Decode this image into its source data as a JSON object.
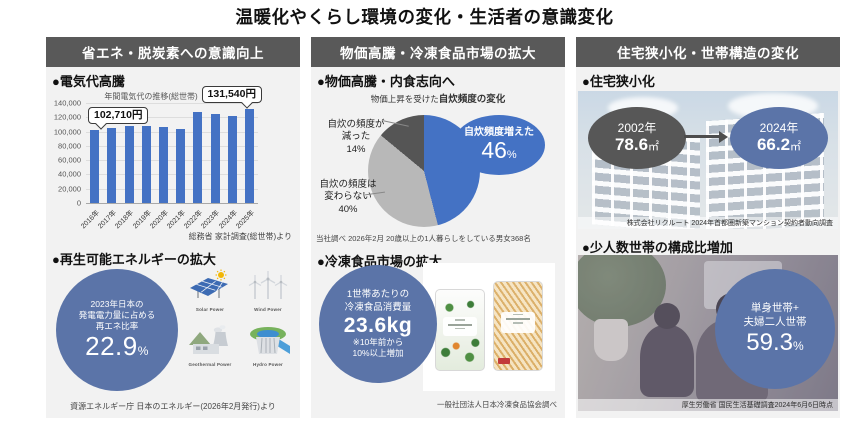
{
  "page_title": "温暖化やくらし環境の変化・生活者の意識変化",
  "colors": {
    "header_gray": "#595959",
    "panel_bg": "#f2f2f2",
    "accent_blue": "#4472c4",
    "slate_blue": "#5b74a8",
    "pie_light_gray": "#b8b8b8",
    "pie_dark_gray": "#555555"
  },
  "left_panel": {
    "header": "省エネ・脱炭素への意識向上",
    "electricity": {
      "heading": "●電気代高騰",
      "chart_title": "年間電気代の推移(総世帯)",
      "callout_first": "102,710円",
      "callout_last": "131,540円",
      "source": "総務省 家計調査(総世帯)より"
    },
    "renewable": {
      "heading": "●再生可能エネルギーの拡大",
      "circle_lines": "2023年日本の\n発電電力量に占める\n再エネ比率",
      "value": "22.9",
      "unit": "%",
      "icons": [
        {
          "name": "solar-power-icon",
          "label": "Solar Power"
        },
        {
          "name": "wind-power-icon",
          "label": "Wind Power"
        },
        {
          "name": "geothermal-power-icon",
          "label": "Geothermal Power"
        },
        {
          "name": "hydro-power-icon",
          "label": "Hydro Power"
        }
      ],
      "source": "資源エネルギー庁 日本のエネルギー(2026年2月発行)より"
    }
  },
  "middle_panel": {
    "header": "物価高騰・冷凍食品市場の拡大",
    "cooking": {
      "heading": "●物価高騰・内食志向へ",
      "chart_title_prefix": "物価上昇を受けた",
      "chart_title_bold": "自炊頻度の変化",
      "label_decreased": "自炊の頻度が\n減った\n14%",
      "label_unchanged": "自炊の頻度は\n変わらない\n40%",
      "ellipse_label": "自炊頻度増えた",
      "ellipse_value": "46",
      "ellipse_unit": "%",
      "source": "当社調べ 2026年2月 20歳以上の1人暮らしをしている男女368名"
    },
    "frozen": {
      "heading": "●冷凍食品市場の拡大",
      "circle_lines": "1世帯あたりの\n冷凍食品消費量",
      "value": "23.6kg",
      "note": "※10年前から\n10%以上増加",
      "source": "一般社団法人日本冷凍食品協会調べ"
    }
  },
  "right_panel": {
    "header": "住宅狭小化・世帯構造の変化",
    "housing": {
      "heading": "●住宅狭小化",
      "year_before": "2002年",
      "area_before": "78.6",
      "year_after": "2024年",
      "area_after": "66.2",
      "area_unit": "㎡",
      "source": "株式会社リクルート 2024年首都圏新築マンション契約者動向調査"
    },
    "household": {
      "heading": "●少人数世帯の構成比増加",
      "circle_lines": "単身世帯+\n夫婦二人世帯",
      "value": "59.3",
      "unit": "%",
      "source": "厚生労働省 国民生活基礎調査2024年6月6日時点"
    }
  },
  "chart_data": [
    {
      "type": "bar",
      "title": "年間電気代の推移(総世帯)",
      "categories": [
        "2016年",
        "2017年",
        "2018年",
        "2019年",
        "2020年",
        "2021年",
        "2022年",
        "2023年",
        "2024年",
        "2025年"
      ],
      "values": [
        102710,
        104500,
        108000,
        108000,
        107000,
        103500,
        127500,
        124000,
        122500,
        131540
      ],
      "ylim": [
        0,
        140000
      ],
      "yticks": [
        "140,000",
        "120,000",
        "100,000",
        "80,000",
        "60,000",
        "40,000",
        "20,000",
        "0"
      ],
      "bar_color": "#4472c4",
      "annotations": [
        {
          "category": "2016年",
          "text": "102,710円"
        },
        {
          "category": "2025年",
          "text": "131,540円"
        }
      ],
      "ylabel": "",
      "xlabel": "",
      "grid": true,
      "source": "総務省 家計調査(総世帯)より"
    },
    {
      "type": "pie",
      "title": "物価上昇を受けた自炊頻度の変化",
      "slices": [
        {
          "label": "自炊頻度増えた",
          "value": 46,
          "color": "#4472c4"
        },
        {
          "label": "自炊の頻度は変わらない",
          "value": 40,
          "color": "#b8b8b8"
        },
        {
          "label": "自炊の頻度が減った",
          "value": 14,
          "color": "#555555"
        }
      ],
      "source": "当社調べ 2026年2月 20歳以上の1人暮らしをしている男女368名"
    }
  ]
}
